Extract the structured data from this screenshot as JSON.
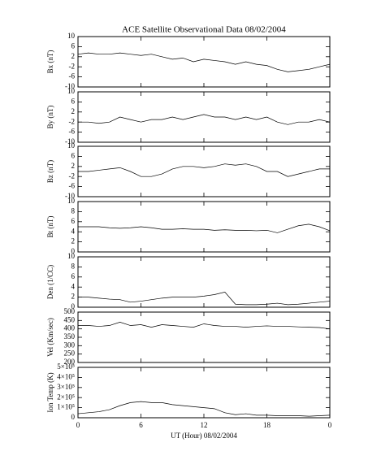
{
  "chart_data": [
    {
      "type": "line",
      "title": "ACE Satellite Observational Data   08/02/2004",
      "ylabel": "Bx (nT)",
      "color": "#000000",
      "x": [
        0,
        1,
        2,
        3,
        4,
        5,
        6,
        7,
        8,
        9,
        10,
        11,
        12,
        13,
        14,
        15,
        16,
        17,
        18,
        19,
        20,
        21,
        22,
        23,
        24
      ],
      "values": [
        3,
        3.5,
        3,
        3,
        3.5,
        3,
        2.5,
        3,
        2,
        1,
        1.5,
        0,
        1,
        0.5,
        0,
        -1,
        0,
        -1,
        -1.5,
        -3,
        -4,
        -3.5,
        -3,
        -2,
        -1
      ],
      "xlim": [
        0,
        24
      ],
      "ylim": [
        -10,
        10
      ],
      "yticks": [
        -10,
        -6,
        -2,
        2,
        6,
        10
      ]
    },
    {
      "type": "line",
      "ylabel": "By (nT)",
      "color": "#000000",
      "x": [
        0,
        1,
        2,
        3,
        4,
        5,
        6,
        7,
        8,
        9,
        10,
        11,
        12,
        13,
        14,
        15,
        16,
        17,
        18,
        19,
        20,
        21,
        22,
        23,
        24
      ],
      "values": [
        -2,
        -2,
        -2.5,
        -2,
        0,
        -1,
        -2,
        -1,
        -1,
        0,
        -1,
        0,
        1,
        0,
        0,
        -1,
        0,
        -1,
        0,
        -2,
        -3,
        -2,
        -2,
        -1,
        -2
      ],
      "xlim": [
        0,
        24
      ],
      "ylim": [
        -10,
        10
      ],
      "yticks": [
        -10,
        -6,
        -2,
        2,
        6,
        10
      ]
    },
    {
      "type": "line",
      "ylabel": "Bz (nT)",
      "color": "#000000",
      "x": [
        0,
        1,
        2,
        3,
        4,
        5,
        6,
        7,
        8,
        9,
        10,
        11,
        12,
        13,
        14,
        15,
        16,
        17,
        18,
        19,
        20,
        21,
        22,
        23,
        24
      ],
      "values": [
        0,
        0,
        0.5,
        1,
        1.5,
        0,
        -2,
        -2,
        -1,
        1,
        2,
        2,
        1.5,
        2,
        3,
        2.5,
        3,
        2,
        0,
        0,
        -2,
        -1,
        0,
        1,
        1
      ],
      "xlim": [
        0,
        24
      ],
      "ylim": [
        -10,
        10
      ],
      "yticks": [
        -10,
        -6,
        -2,
        2,
        6,
        10
      ]
    },
    {
      "type": "line",
      "ylabel": "Bt (nT)",
      "color": "#000000",
      "x": [
        0,
        1,
        2,
        3,
        4,
        5,
        6,
        7,
        8,
        9,
        10,
        11,
        12,
        13,
        14,
        15,
        16,
        17,
        18,
        19,
        20,
        21,
        22,
        23,
        24
      ],
      "values": [
        5,
        5,
        5,
        4.8,
        4.7,
        4.8,
        5,
        4.8,
        4.5,
        4.5,
        4.6,
        4.5,
        4.5,
        4.3,
        4.4,
        4.3,
        4.3,
        4.2,
        4.3,
        3.8,
        4.5,
        5.2,
        5.5,
        5,
        4.2
      ],
      "xlim": [
        0,
        24
      ],
      "ylim": [
        0,
        10
      ],
      "yticks": [
        0,
        2,
        4,
        6,
        8,
        10
      ]
    },
    {
      "type": "line",
      "ylabel": "Den (1/CC)",
      "color": "#000000",
      "x": [
        0,
        1,
        2,
        3,
        4,
        5,
        6,
        7,
        8,
        9,
        10,
        11,
        12,
        13,
        14,
        15,
        16,
        17,
        18,
        19,
        20,
        21,
        22,
        23,
        24
      ],
      "values": [
        2,
        2,
        1.8,
        1.6,
        1.5,
        1,
        1.2,
        1.5,
        1.8,
        2,
        2,
        2,
        2.2,
        2.5,
        3,
        0.6,
        0.5,
        0.5,
        0.6,
        0.8,
        0.5,
        0.6,
        0.8,
        1,
        1.2
      ],
      "xlim": [
        0,
        24
      ],
      "ylim": [
        0,
        10
      ],
      "yticks": [
        0,
        2,
        4,
        6,
        8,
        10
      ]
    },
    {
      "type": "line",
      "ylabel": "Vel (Km/sec)",
      "color": "#000000",
      "x": [
        0,
        1,
        2,
        3,
        4,
        5,
        6,
        7,
        8,
        9,
        10,
        11,
        12,
        13,
        14,
        15,
        16,
        17,
        18,
        19,
        20,
        21,
        22,
        23,
        24
      ],
      "values": [
        420,
        420,
        415,
        420,
        440,
        420,
        425,
        410,
        425,
        420,
        415,
        410,
        430,
        420,
        415,
        415,
        410,
        415,
        418,
        415,
        415,
        412,
        410,
        408,
        400
      ],
      "xlim": [
        0,
        24
      ],
      "ylim": [
        200,
        500
      ],
      "yticks": [
        200,
        250,
        300,
        350,
        400,
        450,
        500
      ]
    },
    {
      "type": "line",
      "ylabel": "Ion Temp (K)",
      "xlabel": "UT (Hour)   08/02/2004",
      "color": "#000000",
      "x": [
        0,
        1,
        2,
        3,
        4,
        5,
        6,
        7,
        8,
        9,
        10,
        11,
        12,
        13,
        14,
        15,
        16,
        17,
        18,
        19,
        20,
        21,
        22,
        23,
        24
      ],
      "values": [
        40000,
        50000,
        60000,
        80000,
        120000,
        150000,
        160000,
        150000,
        150000,
        130000,
        120000,
        110000,
        100000,
        90000,
        50000,
        30000,
        40000,
        25000,
        25000,
        20000,
        20000,
        20000,
        15000,
        20000,
        25000
      ],
      "xlim": [
        0,
        24
      ],
      "ylim": [
        0,
        500000
      ],
      "yticks": [
        0,
        {
          "value": 100000,
          "label": "1×10⁵"
        },
        {
          "value": 200000,
          "label": "2×10⁵"
        },
        {
          "value": 300000,
          "label": "3×10⁵"
        },
        {
          "value": 400000,
          "label": "4×10⁵"
        },
        {
          "value": 500000,
          "label": "5×10⁵"
        }
      ],
      "xticks": [
        0,
        6,
        12,
        18,
        {
          "value": 24,
          "label": "0"
        }
      ]
    }
  ]
}
